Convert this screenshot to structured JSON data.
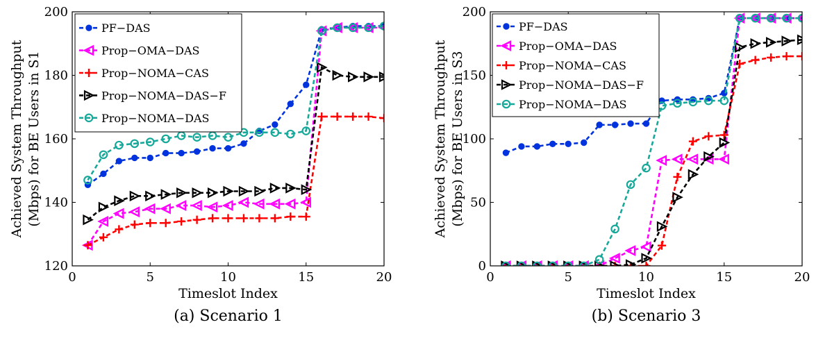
{
  "chart_data": [
    {
      "type": "line",
      "caption": "(a)  Scenario 1",
      "xlabel": "Timeslot Index",
      "ylabel": [
        "Achieved System Throughput",
        "(Mbps) for BE Users in S1"
      ],
      "xlim": [
        0,
        20
      ],
      "ylim": [
        120,
        200
      ],
      "xticks": [
        0,
        5,
        10,
        15,
        20
      ],
      "yticks": [
        120,
        140,
        160,
        180,
        200
      ],
      "grid": false,
      "legend_position": "top-left",
      "x": [
        1,
        2,
        3,
        4,
        5,
        6,
        7,
        8,
        9,
        10,
        11,
        12,
        13,
        14,
        15,
        16,
        17,
        18,
        19,
        20
      ],
      "series": [
        {
          "name": "PF−DAS",
          "color": "#0033dd",
          "marker": "dot",
          "values": [
            145.5,
            149,
            153,
            154,
            154,
            155.5,
            155.5,
            156,
            157,
            157,
            158.5,
            162.5,
            164.5,
            171,
            177,
            194.5,
            195,
            195.5,
            195.5,
            195.5
          ]
        },
        {
          "name": "Prop−OMA−DAS",
          "color": "#ff00ff",
          "marker": "triangle-left",
          "values": [
            126.5,
            134,
            136.5,
            137,
            138,
            138,
            139,
            139,
            138.5,
            139,
            140,
            139.5,
            139.5,
            139.5,
            140,
            194,
            195,
            195,
            195,
            195
          ]
        },
        {
          "name": "Prop−NOMA−CAS",
          "color": "#ff0000",
          "marker": "plus",
          "values": [
            126.5,
            129,
            131.5,
            133,
            133.5,
            133.5,
            134,
            134.5,
            135,
            135,
            135,
            135,
            135,
            135.5,
            135.5,
            167,
            167,
            167,
            167,
            166.5
          ]
        },
        {
          "name": "Prop−NOMA−DAS−F",
          "color": "#000000",
          "marker": "triangle-right",
          "values": [
            134.5,
            138.5,
            140.5,
            142,
            142,
            142.5,
            143,
            143,
            143,
            143.5,
            143.5,
            143.5,
            144.5,
            144.5,
            144,
            182.5,
            180,
            179.5,
            179.5,
            179.5
          ]
        },
        {
          "name": "Prop−NOMA−DAS",
          "color": "#17a89a",
          "marker": "circle",
          "values": [
            147,
            155,
            158,
            158.5,
            159,
            160,
            161,
            160.5,
            161,
            160.5,
            162,
            162,
            162,
            161.5,
            162.5,
            194,
            195,
            195,
            195,
            195.5
          ]
        }
      ]
    },
    {
      "type": "line",
      "caption": "(b)  Scenario 3",
      "xlabel": "Timeslot Index",
      "ylabel": [
        "Achieved System Throughput",
        "(Mbps) for BE Users in S3"
      ],
      "xlim": [
        0,
        20
      ],
      "ylim": [
        0,
        200
      ],
      "xticks": [
        0,
        5,
        10,
        15,
        20
      ],
      "yticks": [
        0,
        50,
        100,
        150,
        200
      ],
      "grid": false,
      "legend_position": "top-left",
      "x": [
        1,
        2,
        3,
        4,
        5,
        6,
        7,
        8,
        9,
        10,
        11,
        12,
        13,
        14,
        15,
        16,
        17,
        18,
        19,
        20
      ],
      "series": [
        {
          "name": "PF−DAS",
          "color": "#0033dd",
          "marker": "dot",
          "values": [
            89,
            94,
            94,
            96,
            96,
            97,
            111,
            111,
            112,
            112,
            130,
            131,
            131,
            132,
            136,
            195,
            195,
            195,
            195,
            195
          ]
        },
        {
          "name": "Prop−OMA−DAS",
          "color": "#ff00ff",
          "marker": "triangle-left",
          "values": [
            0,
            0,
            0,
            0,
            0,
            0,
            0,
            6,
            12,
            15,
            83,
            84,
            84,
            84,
            84,
            195,
            195,
            195,
            195,
            195
          ]
        },
        {
          "name": "Prop−NOMA−CAS",
          "color": "#ff0000",
          "marker": "plus",
          "values": [
            0,
            0,
            0,
            0,
            0,
            0,
            0,
            0,
            0,
            0,
            16,
            70,
            98,
            102,
            103,
            159,
            162,
            164,
            165,
            165
          ]
        },
        {
          "name": "Prop−NOMA−DAS−F",
          "color": "#000000",
          "marker": "triangle-right",
          "values": [
            0,
            0,
            0,
            0,
            0,
            0,
            0,
            0,
            1,
            6,
            31,
            54,
            72,
            86,
            97,
            172,
            175,
            176,
            177,
            178
          ]
        },
        {
          "name": "Prop−NOMA−DAS",
          "color": "#17a89a",
          "marker": "circle",
          "values": [
            0,
            0,
            0,
            0,
            0,
            0,
            5,
            29,
            64,
            77,
            126,
            128,
            129,
            130,
            130,
            195,
            195,
            195,
            195,
            195
          ]
        }
      ]
    }
  ]
}
